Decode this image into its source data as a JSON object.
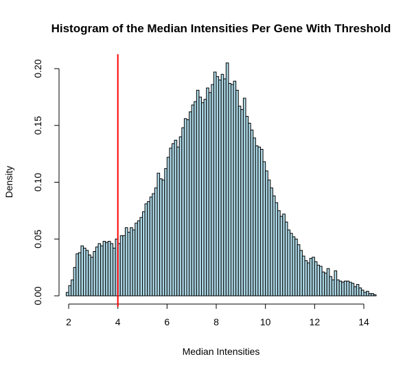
{
  "chart_data": {
    "type": "bar",
    "title": "Histogram of the Median Intensities Per Gene With Threshold",
    "xlabel": "Median Intensities",
    "ylabel": "Density",
    "xlim": [
      1.9,
      14.5
    ],
    "ylim": [
      0,
      0.2
    ],
    "bin_start": 1.9,
    "bin_width": 0.1,
    "bar_fill": "#add8e6",
    "bar_stroke": "#000000",
    "threshold": {
      "x": 4,
      "color": "#ff0000"
    },
    "x_ticks": [
      2,
      4,
      6,
      8,
      10,
      12,
      14
    ],
    "x_tick_labels": [
      "2",
      "4",
      "6",
      "8",
      "10",
      "12",
      "14"
    ],
    "y_ticks": [
      0,
      0.05,
      0.1,
      0.15,
      0.2
    ],
    "y_tick_labels": [
      "0.00",
      "0.05",
      "0.10",
      "0.15",
      "0.20"
    ],
    "grid": false,
    "values": [
      0.003,
      0.009,
      0.014,
      0.025,
      0.037,
      0.038,
      0.044,
      0.042,
      0.04,
      0.036,
      0.034,
      0.039,
      0.043,
      0.046,
      0.044,
      0.048,
      0.047,
      0.048,
      0.046,
      0.042,
      0.05,
      0.046,
      0.053,
      0.053,
      0.06,
      0.056,
      0.06,
      0.058,
      0.064,
      0.066,
      0.069,
      0.074,
      0.081,
      0.083,
      0.087,
      0.09,
      0.095,
      0.108,
      0.103,
      0.102,
      0.112,
      0.122,
      0.13,
      0.134,
      0.137,
      0.131,
      0.14,
      0.148,
      0.156,
      0.155,
      0.162,
      0.168,
      0.171,
      0.181,
      0.175,
      0.17,
      0.173,
      0.183,
      0.179,
      0.186,
      0.197,
      0.193,
      0.19,
      0.195,
      0.191,
      0.205,
      0.187,
      0.186,
      0.189,
      0.181,
      0.167,
      0.164,
      0.174,
      0.158,
      0.152,
      0.146,
      0.139,
      0.132,
      0.131,
      0.129,
      0.118,
      0.11,
      0.102,
      0.095,
      0.088,
      0.082,
      0.075,
      0.07,
      0.072,
      0.065,
      0.058,
      0.055,
      0.052,
      0.05,
      0.045,
      0.04,
      0.035,
      0.031,
      0.029,
      0.033,
      0.034,
      0.03,
      0.027,
      0.026,
      0.021,
      0.02,
      0.024,
      0.017,
      0.014,
      0.022,
      0.014,
      0.013,
      0.012,
      0.013,
      0.013,
      0.012,
      0.011,
      0.008,
      0.01,
      0.007,
      0.005,
      0.003,
      0.004,
      0.002,
      0.002,
      0.001
    ]
  }
}
